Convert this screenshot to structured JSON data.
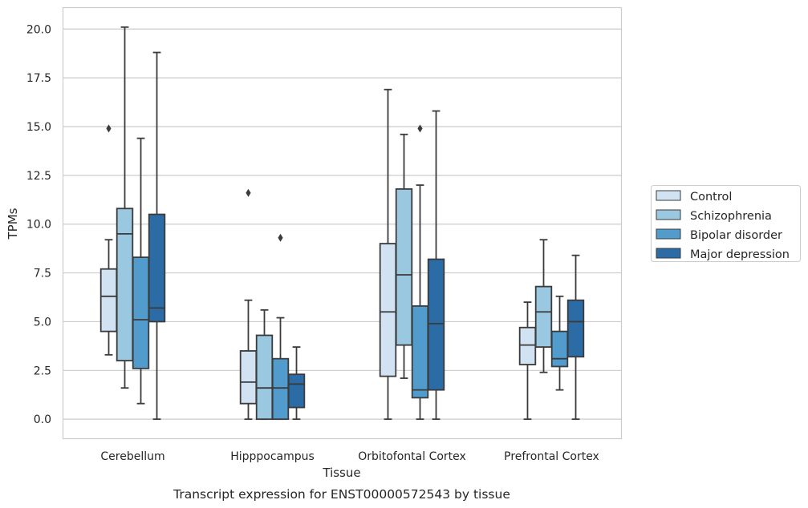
{
  "chart_data": {
    "type": "boxplot",
    "caption": "Transcript expression for ENST00000572543 by tissue",
    "xlabel": "Tissue",
    "ylabel": "TPMs",
    "ylim": [
      -1.0,
      21.1
    ],
    "yticks": [
      0.0,
      2.5,
      5.0,
      7.5,
      10.0,
      12.5,
      15.0,
      17.5,
      20.0
    ],
    "ytick_labels": [
      "0.0",
      "2.5",
      "5.0",
      "7.5",
      "10.0",
      "12.5",
      "15.0",
      "17.5",
      "20.0"
    ],
    "grid": "horizontal",
    "legend_position": "right",
    "categories": [
      "Cerebellum",
      "Hipppocampus",
      "Orbitofontal Cortex",
      "Prefrontal Cortex"
    ],
    "series": [
      {
        "name": "Control",
        "color": "#d1e2f2",
        "boxes": [
          {
            "whislo": 3.3,
            "q1": 4.5,
            "med": 6.3,
            "q3": 7.7,
            "whishi": 9.2,
            "fliers": [
              14.9
            ]
          },
          {
            "whislo": 0.0,
            "q1": 0.8,
            "med": 1.9,
            "q3": 3.5,
            "whishi": 6.1,
            "fliers": [
              11.6
            ]
          },
          {
            "whislo": 0.0,
            "q1": 2.2,
            "med": 5.5,
            "q3": 9.0,
            "whishi": 16.9,
            "fliers": []
          },
          {
            "whislo": 0.0,
            "q1": 2.8,
            "med": 3.8,
            "q3": 4.7,
            "whishi": 6.0,
            "fliers": []
          }
        ]
      },
      {
        "name": "Schizophrenia",
        "color": "#9ac8e0",
        "boxes": [
          {
            "whislo": 1.6,
            "q1": 3.0,
            "med": 9.5,
            "q3": 10.8,
            "whishi": 20.1,
            "fliers": []
          },
          {
            "whislo": 0.0,
            "q1": 0.0,
            "med": 1.6,
            "q3": 4.3,
            "whishi": 5.6,
            "fliers": []
          },
          {
            "whislo": 2.1,
            "q1": 3.8,
            "med": 7.4,
            "q3": 11.8,
            "whishi": 14.6,
            "fliers": []
          },
          {
            "whislo": 2.4,
            "q1": 3.7,
            "med": 5.5,
            "q3": 6.8,
            "whishi": 9.2,
            "fliers": []
          }
        ]
      },
      {
        "name": "Bipolar disorder",
        "color": "#519ccc",
        "boxes": [
          {
            "whislo": 0.8,
            "q1": 2.6,
            "med": 5.1,
            "q3": 8.3,
            "whishi": 14.4,
            "fliers": []
          },
          {
            "whislo": 0.0,
            "q1": 0.0,
            "med": 1.6,
            "q3": 3.1,
            "whishi": 5.2,
            "fliers": [
              9.3
            ]
          },
          {
            "whislo": 0.0,
            "q1": 1.1,
            "med": 1.5,
            "q3": 5.8,
            "whishi": 12.0,
            "fliers": [
              14.9
            ]
          },
          {
            "whislo": 1.5,
            "q1": 2.7,
            "med": 3.1,
            "q3": 4.5,
            "whishi": 6.3,
            "fliers": []
          }
        ]
      },
      {
        "name": "Major depression",
        "color": "#2b6ca6",
        "boxes": [
          {
            "whislo": 0.0,
            "q1": 5.0,
            "med": 5.7,
            "q3": 10.5,
            "whishi": 18.8,
            "fliers": []
          },
          {
            "whislo": 0.0,
            "q1": 0.6,
            "med": 1.8,
            "q3": 2.3,
            "whishi": 3.7,
            "fliers": []
          },
          {
            "whislo": 0.0,
            "q1": 1.5,
            "med": 4.9,
            "q3": 8.2,
            "whishi": 15.8,
            "fliers": []
          },
          {
            "whislo": 0.0,
            "q1": 3.2,
            "med": 5.0,
            "q3": 6.1,
            "whishi": 8.4,
            "fliers": []
          }
        ]
      }
    ]
  }
}
